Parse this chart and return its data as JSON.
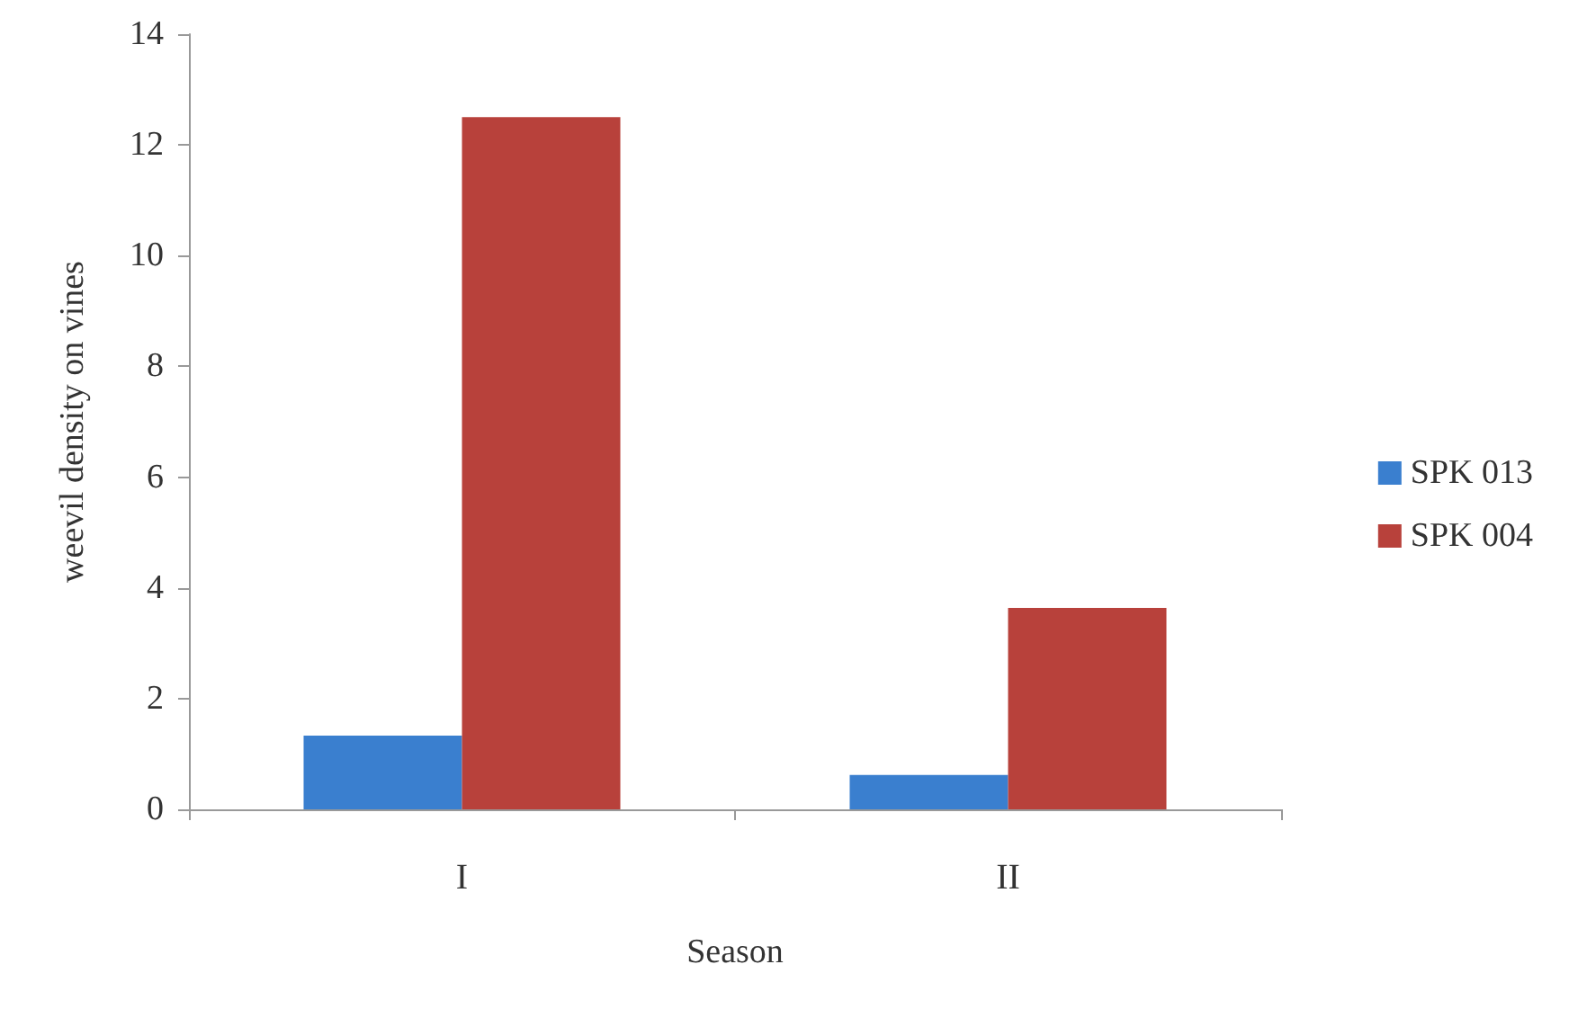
{
  "chart_data": {
    "type": "bar",
    "xlabel": "Season",
    "ylabel": "weevil density on vines",
    "categories": [
      "I",
      "II"
    ],
    "series": [
      {
        "name": "SPK 013",
        "color": "#3a7fcf",
        "values": [
          1.33,
          0.62
        ]
      },
      {
        "name": "SPK 004",
        "color": "#b8413b",
        "values": [
          12.5,
          3.64
        ]
      }
    ],
    "ylim": [
      0,
      14
    ],
    "yticks": [
      0,
      2,
      4,
      6,
      8,
      10,
      12,
      14
    ],
    "grid": false,
    "legend": "right"
  }
}
